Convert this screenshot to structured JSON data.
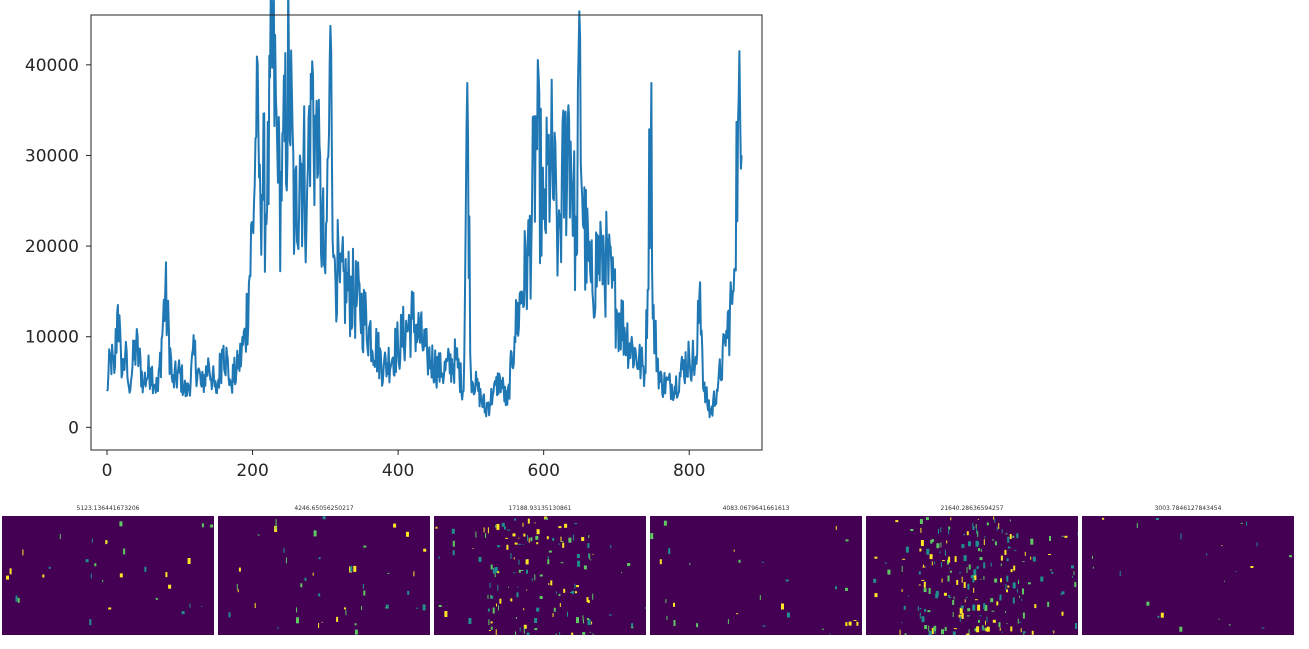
{
  "chart_data": [
    {
      "type": "line",
      "title": "",
      "xlabel": "",
      "ylabel": "",
      "xlim": [
        -22,
        900
      ],
      "ylim": [
        -2500,
        45500
      ],
      "x_ticks": [
        0,
        200,
        400,
        600,
        800
      ],
      "y_ticks": [
        0,
        10000,
        20000,
        30000,
        40000
      ],
      "x_tick_labels": [
        "0",
        "200",
        "400",
        "600",
        "800"
      ],
      "y_tick_labels": [
        "0",
        "10000",
        "20000",
        "30000",
        "40000"
      ],
      "grid": false,
      "color": "#1f77b4",
      "series": [
        {
          "x": [
            0,
            5,
            10,
            15,
            20,
            25,
            30,
            40,
            50,
            60,
            70,
            80,
            90,
            100,
            110,
            120,
            130,
            140,
            150,
            160,
            170,
            180,
            190,
            200,
            205,
            210,
            220,
            228,
            235,
            240,
            250,
            258,
            265,
            275,
            280,
            290,
            300,
            308,
            312,
            320,
            340,
            360,
            380,
            400,
            420,
            440,
            460,
            480,
            490,
            495,
            500,
            510,
            520,
            530,
            540,
            550,
            560,
            570,
            580,
            590,
            600,
            610,
            620,
            635,
            645,
            648,
            655,
            665,
            680,
            700,
            720,
            740,
            748,
            750,
            760,
            780,
            800,
            810,
            815,
            820,
            830,
            840,
            850,
            860,
            867,
            872
          ],
          "y": [
            4000,
            8000,
            6000,
            13500,
            5500,
            8000,
            4500,
            9000,
            5000,
            6500,
            4000,
            14800,
            5000,
            6000,
            3500,
            8000,
            4500,
            7000,
            3800,
            9000,
            5000,
            6500,
            10000,
            22000,
            32000,
            29000,
            24000,
            43000,
            27000,
            25000,
            40000,
            22000,
            30000,
            26000,
            39000,
            28000,
            17000,
            41500,
            19000,
            16000,
            14500,
            11000,
            6500,
            9000,
            12000,
            8000,
            6000,
            7500,
            4000,
            38000,
            6000,
            4000,
            2000,
            3500,
            5500,
            2500,
            10000,
            15000,
            19000,
            32000,
            23000,
            30000,
            21000,
            34000,
            19000,
            41500,
            22000,
            16000,
            20000,
            13000,
            9000,
            6000,
            38000,
            12000,
            5000,
            4500,
            8000,
            7000,
            16000,
            4000,
            1500,
            5000,
            9000,
            15000,
            33500,
            30000
          ]
        }
      ]
    },
    {
      "type": "heatmap",
      "panels": [
        {
          "title": "5123.136441673206",
          "density": 0.02
        },
        {
          "title": "4246.65056250217",
          "density": 0.03
        },
        {
          "title": "17188.93135130861",
          "density": 0.1
        },
        {
          "title": "4083.0679641661613",
          "density": 0.02
        },
        {
          "title": "21640.28636594257",
          "density": 0.15
        },
        {
          "title": "3003.7846127843454",
          "density": 0.015
        }
      ]
    }
  ],
  "colors": {
    "line": "#1f77b4",
    "axis": "#262626",
    "viridis_bg": "#440154",
    "viridis_teal": "#21908d",
    "viridis_green": "#5ec962",
    "viridis_yellow": "#fde725"
  }
}
